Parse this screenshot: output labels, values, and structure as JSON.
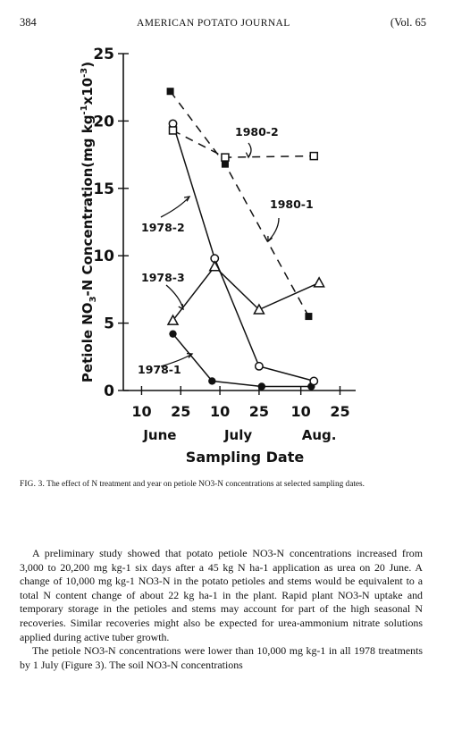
{
  "header": {
    "page_number": "384",
    "journal_title": "AMERICAN POTATO JOURNAL",
    "volume": "(Vol. 65"
  },
  "chart_data": {
    "type": "line",
    "ylabel": "Petiole NO3-N Concentration(mg kg-1 x10-3)",
    "ylabel_parts": {
      "main": "Petiole NO",
      "sub1": "3",
      "mid": "-N Concentration(mg kg",
      "sup1": "-1",
      "mid2": "x10",
      "sup2": "-3",
      "end": ")"
    },
    "xlabel": "Sampling Date",
    "ylim": [
      0,
      25
    ],
    "yticks": [
      0,
      5,
      10,
      15,
      20,
      25
    ],
    "ytick_labels": [
      "0",
      "5",
      "10",
      "15",
      "20",
      "25"
    ],
    "xticks": [
      {
        "x": 10,
        "label": "10"
      },
      {
        "x": 25,
        "label": "25"
      },
      {
        "x": 40,
        "label": "10"
      },
      {
        "x": 55,
        "label": "25"
      },
      {
        "x": 71,
        "label": "10"
      },
      {
        "x": 86,
        "label": "25"
      }
    ],
    "month_labels": [
      {
        "x": 17,
        "label": "June"
      },
      {
        "x": 47,
        "label": "July"
      },
      {
        "x": 78,
        "label": "Aug."
      }
    ],
    "xlim": [
      3,
      92
    ],
    "series": [
      {
        "name": "1978-1",
        "marker": "filled-circle",
        "line": "solid",
        "points": [
          [
            22,
            4.2
          ],
          [
            37,
            0.7
          ],
          [
            56,
            0.3
          ],
          [
            75,
            0.3
          ]
        ]
      },
      {
        "name": "1978-2",
        "marker": "open-circle",
        "line": "solid",
        "points": [
          [
            22,
            19.8
          ],
          [
            38,
            9.8
          ],
          [
            55,
            1.8
          ],
          [
            76,
            0.7
          ]
        ]
      },
      {
        "name": "1978-3",
        "marker": "open-triangle",
        "line": "solid",
        "points": [
          [
            22,
            5.2
          ],
          [
            38,
            9.2
          ],
          [
            55,
            6.0
          ],
          [
            78,
            8.0
          ]
        ]
      },
      {
        "name": "1980-1",
        "marker": "filled-square",
        "line": "dashed",
        "points": [
          [
            21,
            22.2
          ],
          [
            42,
            16.8
          ],
          [
            74,
            5.5
          ]
        ]
      },
      {
        "name": "1980-2",
        "marker": "open-square",
        "line": "dashed",
        "points": [
          [
            22,
            19.3
          ],
          [
            42,
            17.3
          ],
          [
            76,
            17.4
          ]
        ]
      }
    ]
  },
  "caption": {
    "label": "FIG. 3.",
    "text": "The effect of N treatment and year on petiole NO3-N concentrations at selected sampling dates."
  },
  "body": {
    "paragraphs": [
      "A preliminary study showed that potato petiole NO3-N concentrations increased from 3,000 to 20,200 mg kg-1 six days after a 45 kg N ha-1 application as urea on 20 June. A change of 10,000 mg kg-1 NO3-N in the potato petioles and stems would be equivalent to a total N content change of about 22 kg ha-1 in the plant. Rapid plant NO3-N uptake and temporary storage in the petioles and stems may account for part of the high seasonal N recoveries. Similar recoveries might also be expected for urea-ammonium nitrate solutions applied during active tuber growth.",
      "The petiole NO3-N concentrations were lower than 10,000 mg kg-1 in all 1978 treatments by 1 July (Figure 3). The soil NO3-N concentrations"
    ]
  }
}
